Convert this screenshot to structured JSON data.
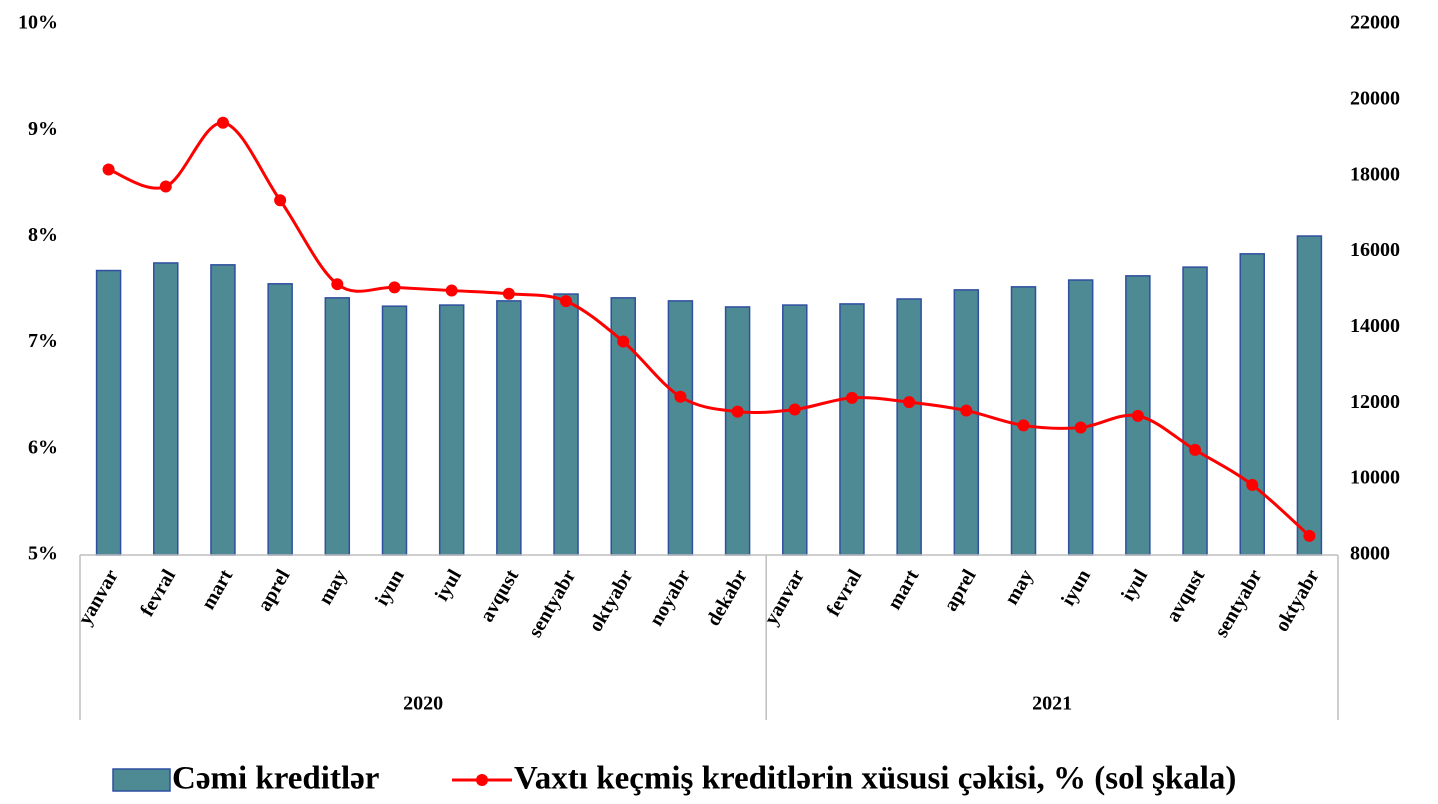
{
  "chart_data": {
    "type": "bar_line",
    "category_groups": [
      {
        "label": "2020",
        "categories": [
          "yanvar",
          "fevral",
          "mart",
          "aprel",
          "may",
          "iyun",
          "iyul",
          "avqust",
          "sentyabr",
          "oktyabr",
          "noyabr",
          "dekabr"
        ]
      },
      {
        "label": "2021",
        "categories": [
          "yanvar",
          "fevral",
          "mart",
          "aprel",
          "may",
          "iyun",
          "iyul",
          "avqust",
          "sentyabr",
          "oktyabr"
        ]
      }
    ],
    "series": [
      {
        "name": "Cəmi kreditlər",
        "type": "bar",
        "axis": "y2",
        "color": "#4e8a93",
        "edge_color": "#2f4fa0",
        "values": [
          15500,
          15700,
          15650,
          15150,
          14780,
          14560,
          14590,
          14700,
          14880,
          14780,
          14700,
          14540,
          14590,
          14620,
          14750,
          14990,
          15070,
          15250,
          15360,
          15590,
          15940,
          16410
        ]
      },
      {
        "name": "Vaxtı keçmiş kreditlərin xüsusi çəkisi, % (sol şkala)",
        "type": "line",
        "axis": "y",
        "color": "#ff0000",
        "values": [
          8.63,
          8.47,
          9.07,
          8.34,
          7.55,
          7.52,
          7.49,
          7.46,
          7.39,
          7.01,
          6.49,
          6.35,
          6.37,
          6.48,
          6.44,
          6.36,
          6.22,
          6.2,
          6.31,
          5.99,
          5.66,
          5.18
        ]
      }
    ],
    "ylim": [
      5,
      10
    ],
    "yticks": [
      {
        "value": 5,
        "label": "5%"
      },
      {
        "value": 6,
        "label": "6%"
      },
      {
        "value": 7,
        "label": "7%"
      },
      {
        "value": 8,
        "label": "8%"
      },
      {
        "value": 9,
        "label": "9%"
      },
      {
        "value": 10,
        "label": "10%"
      }
    ],
    "y2lim": [
      8000,
      22000
    ],
    "y2ticks": [
      8000,
      10000,
      12000,
      14000,
      16000,
      18000,
      20000,
      22000
    ],
    "legend": "bottom",
    "grid": false
  }
}
